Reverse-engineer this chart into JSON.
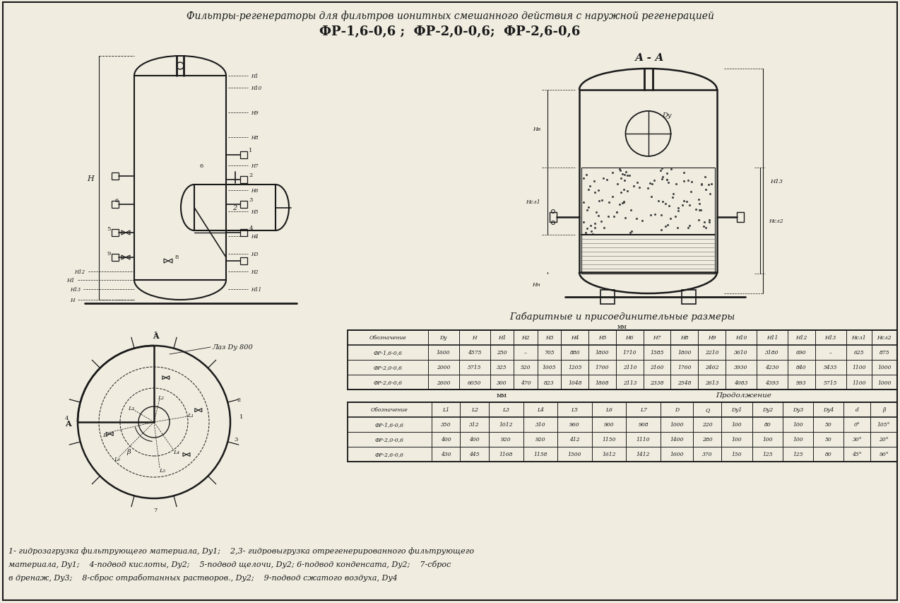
{
  "title_line1": "Фильтры-регенераторы для фильтров ионитных смешанного действия с наружной регенерацией",
  "title_line2": "ФР-1,6-0,6 ;  ФР-2,0-0,6;  ФР-2,6-0,6",
  "section_label": "А - А",
  "table1_title": "Габаритные и присоединительные размеры",
  "table1_subtitle": "мм",
  "table1_headers": [
    "Обозначение",
    "Dy",
    "H",
    "H1",
    "H2",
    "H3",
    "H4",
    "H5",
    "H6",
    "H7",
    "H8",
    "H9",
    "H10",
    "H11",
    "H12",
    "H13",
    "Нсл1",
    "Нсл2"
  ],
  "table1_rows": [
    [
      "ФР-1,6-0,6",
      "1600",
      "4575",
      "250",
      "–",
      "705",
      "880",
      "1800",
      "1710",
      "1585",
      "1800",
      "2210",
      "3610",
      "3180",
      "690",
      "–",
      "625",
      "875"
    ],
    [
      "ФР-2,0-0,6",
      "2000",
      "5715",
      "325",
      "520",
      "1005",
      "1205",
      "1760",
      "2110",
      "2160",
      "1760",
      "2462",
      "3930",
      "4230",
      "840",
      "5435",
      "1100",
      "1000"
    ],
    [
      "ФР-2,6-0,6",
      "2600",
      "6050",
      "300",
      "470",
      "823",
      "1048",
      "1868",
      "2113",
      "2338",
      "2548",
      "2613",
      "4083",
      "4393",
      "993",
      "5715",
      "1100",
      "1000"
    ]
  ],
  "table2_mm": "мм",
  "table2_cont": "Продолжение",
  "table2_headers": [
    "Обозначение",
    "L1",
    "L2",
    "L3",
    "L4",
    "L5",
    "L6",
    "L7",
    "D",
    "Q",
    "Dy1",
    "Dy2",
    "Dy3",
    "Dy4",
    "d",
    "β"
  ],
  "table2_rows": [
    [
      "ФР-1,6-0,6",
      "350",
      "312",
      "1012",
      "310",
      "960",
      "900",
      "908",
      "1000",
      "220",
      "100",
      "80",
      "100",
      "50",
      "0°",
      "105°"
    ],
    [
      "ФР-2,0-0,6",
      "400",
      "400",
      "920",
      "920",
      "412",
      "1150",
      "1110",
      "1400",
      "280",
      "100",
      "100",
      "100",
      "50",
      "30°",
      "20°"
    ],
    [
      "ФР-2,6-0,6",
      "430",
      "445",
      "1168",
      "1158",
      "1500",
      "1612",
      "1412",
      "1600",
      "370",
      "150",
      "125",
      "125",
      "80",
      "45°",
      "90°"
    ]
  ],
  "footnote_lines": [
    "1- гидрозагрузка фильтрующего материала, Dy1;    2,3- гидровыгрузка отрегенерированного фильтрующего",
    "материала, Dy1;    4-подвод кислоты, Dy2;    5-подвод щелочи, Dy2; 6-подвод конденсата, Dy2;    7-сброс",
    "в дренаж, Dy3;    8-сброс отработанных растворов., Dy2;    9-подвод сжатого воздуха, Dy4"
  ],
  "bg_color": "#f0ece0",
  "line_color": "#1a1a1a",
  "text_color": "#1a1a1a"
}
